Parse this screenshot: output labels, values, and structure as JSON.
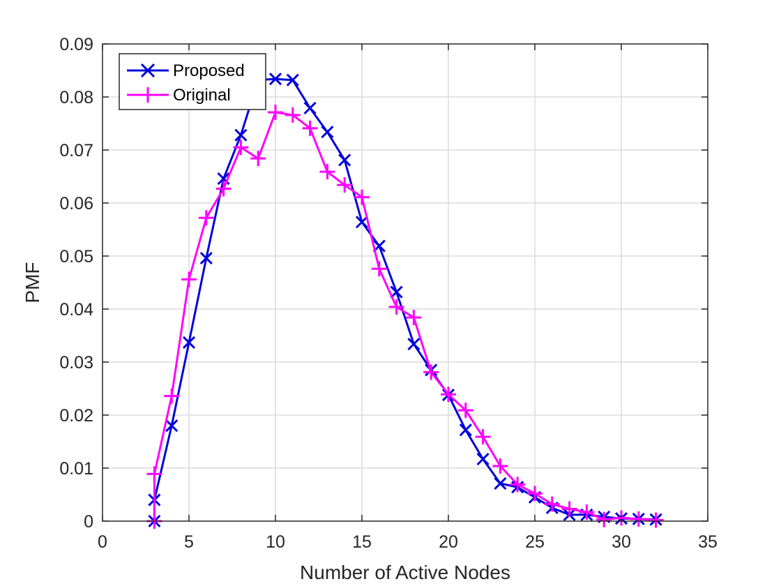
{
  "chart_data": {
    "type": "line",
    "title": "",
    "xlabel": "Number of Active Nodes",
    "ylabel": "PMF",
    "xlim": [
      0,
      35
    ],
    "ylim": [
      0,
      0.09
    ],
    "xticks": [
      0,
      5,
      10,
      15,
      20,
      25,
      30,
      35
    ],
    "yticks": [
      0,
      0.01,
      0.02,
      0.03,
      0.04,
      0.05,
      0.06,
      0.07,
      0.08,
      0.09
    ],
    "xtick_labels": [
      "0",
      "5",
      "10",
      "15",
      "20",
      "25",
      "30",
      "35"
    ],
    "ytick_labels": [
      "0",
      "0.01",
      "0.02",
      "0.03",
      "0.04",
      "0.05",
      "0.06",
      "0.07",
      "0.08",
      "0.09"
    ],
    "grid": true,
    "legend_position": "top-left",
    "series": [
      {
        "name": "Proposed",
        "color": "#0000dd",
        "marker": "x",
        "x": [
          3,
          3,
          4,
          5,
          6,
          7,
          8,
          9,
          10,
          11,
          12,
          13,
          14,
          15,
          16,
          17,
          18,
          19,
          20,
          21,
          22,
          23,
          24,
          25,
          26,
          27,
          28,
          29,
          30,
          31,
          32
        ],
        "y": [
          0,
          0.004,
          0.018,
          0.0337,
          0.0496,
          0.0646,
          0.0728,
          0.0832,
          0.0834,
          0.0832,
          0.0779,
          0.0734,
          0.0681,
          0.0564,
          0.0519,
          0.0432,
          0.0334,
          0.0285,
          0.0238,
          0.0172,
          0.0117,
          0.0071,
          0.0064,
          0.0045,
          0.0025,
          0.0012,
          0.0012,
          0.0008,
          0.0005,
          0.0004,
          0.0003
        ]
      },
      {
        "name": "Original",
        "color": "#ff00ff",
        "marker": "+",
        "x": [
          3,
          3,
          4,
          5,
          6,
          7,
          8,
          9,
          10,
          11,
          12,
          13,
          14,
          15,
          16,
          17,
          18,
          19,
          20,
          21,
          22,
          23,
          24,
          25,
          26,
          27,
          28,
          29,
          30,
          31,
          32
        ],
        "y": [
          0,
          0.0089,
          0.0236,
          0.0456,
          0.0572,
          0.0627,
          0.0705,
          0.0684,
          0.0771,
          0.0766,
          0.0741,
          0.0659,
          0.0634,
          0.0611,
          0.0476,
          0.0404,
          0.0384,
          0.0281,
          0.0239,
          0.0209,
          0.0159,
          0.0104,
          0.0069,
          0.0052,
          0.0032,
          0.0023,
          0.0017,
          0.0003,
          0.0006,
          0.0004,
          0.0002
        ]
      }
    ]
  }
}
